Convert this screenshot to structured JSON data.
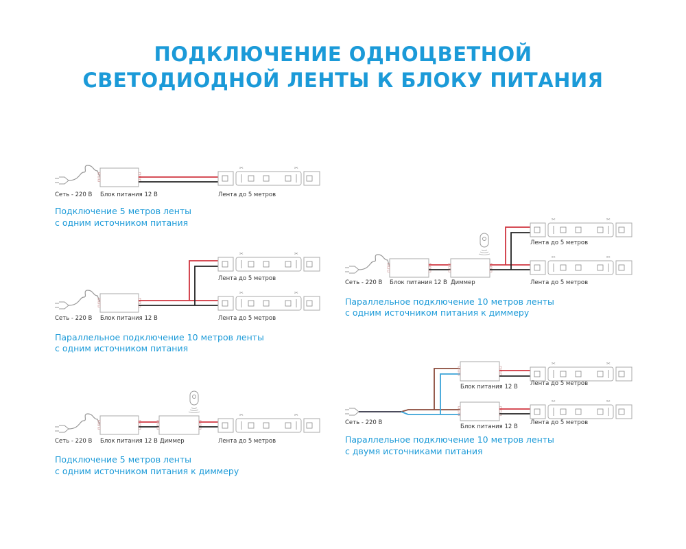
{
  "title": {
    "line1": "ПОДКЛЮЧЕНИЕ ОДНОЦВЕТНОЙ",
    "line2": "СВЕТОДИОДНОЙ ЛЕНТЫ К БЛОКУ ПИТАНИЯ"
  },
  "labels": {
    "mains": "Сеть - 220 В",
    "psu": "Блок питания 12 В",
    "strip": "Лента до 5 метров",
    "dimmer": "Диммер"
  },
  "colors": {
    "accent": "#1b9ad8",
    "red_wire": "#d0343f",
    "black_wire": "#222222",
    "brown_wire": "#8a4a3a",
    "blue_wire": "#3aa3d8",
    "outline": "#aaaaaa"
  },
  "diagrams": [
    {
      "caption1": "Подключение 5 метров ленты",
      "caption2": "с одним источником питания"
    },
    {
      "caption1": "Параллельное подключение 10 метров ленты",
      "caption2": "с одним источником питания"
    },
    {
      "caption1": "Подключение 5 метров ленты",
      "caption2": "с одним источником питания к диммеру"
    },
    {
      "caption1": "Параллельное подключение 10 метров ленты",
      "caption2": "с одним источником питания к диммеру"
    },
    {
      "caption1": "Параллельное подключение 10 метров ленты",
      "caption2": "с двумя источниками питания"
    }
  ]
}
